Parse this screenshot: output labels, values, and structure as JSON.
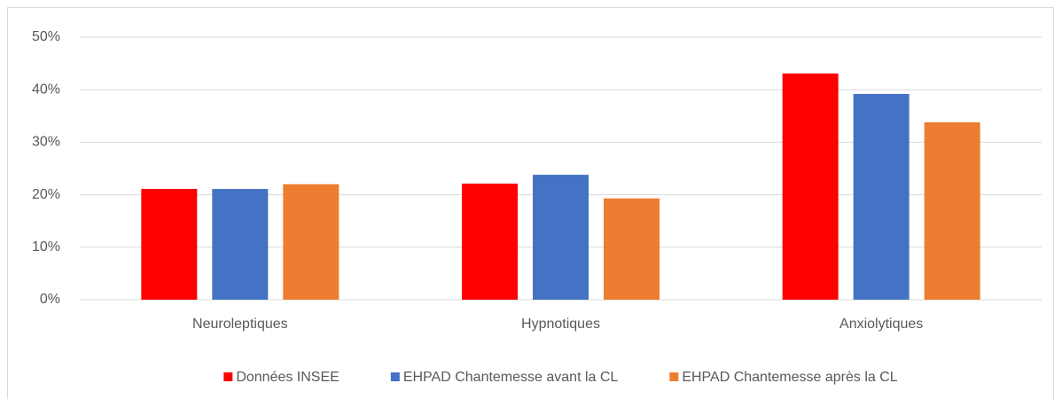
{
  "chart_data": {
    "type": "bar",
    "categories": [
      "Neuroleptiques",
      "Hypnotiques",
      "Anxiolytiques"
    ],
    "series": [
      {
        "name": "Données INSEE",
        "color": "#ff0000",
        "values": [
          21.1,
          22.1,
          43.1
        ]
      },
      {
        "name": "EHPAD Chantemesse avant la CL",
        "color": "#4472c4",
        "values": [
          21.1,
          23.8,
          39.2
        ]
      },
      {
        "name": "EHPAD Chantemesse après la CL",
        "color": "#ed7d31",
        "values": [
          22.0,
          19.3,
          33.8
        ]
      }
    ],
    "ylim": [
      0,
      50
    ],
    "yticks": [
      {
        "value": 0,
        "label": "0%"
      },
      {
        "value": 10,
        "label": "10%"
      },
      {
        "value": 20,
        "label": "20%"
      },
      {
        "value": 30,
        "label": "30%"
      },
      {
        "value": 40,
        "label": "40%"
      },
      {
        "value": 50,
        "label": "50%"
      }
    ],
    "grid": true,
    "legend": "bottom"
  }
}
